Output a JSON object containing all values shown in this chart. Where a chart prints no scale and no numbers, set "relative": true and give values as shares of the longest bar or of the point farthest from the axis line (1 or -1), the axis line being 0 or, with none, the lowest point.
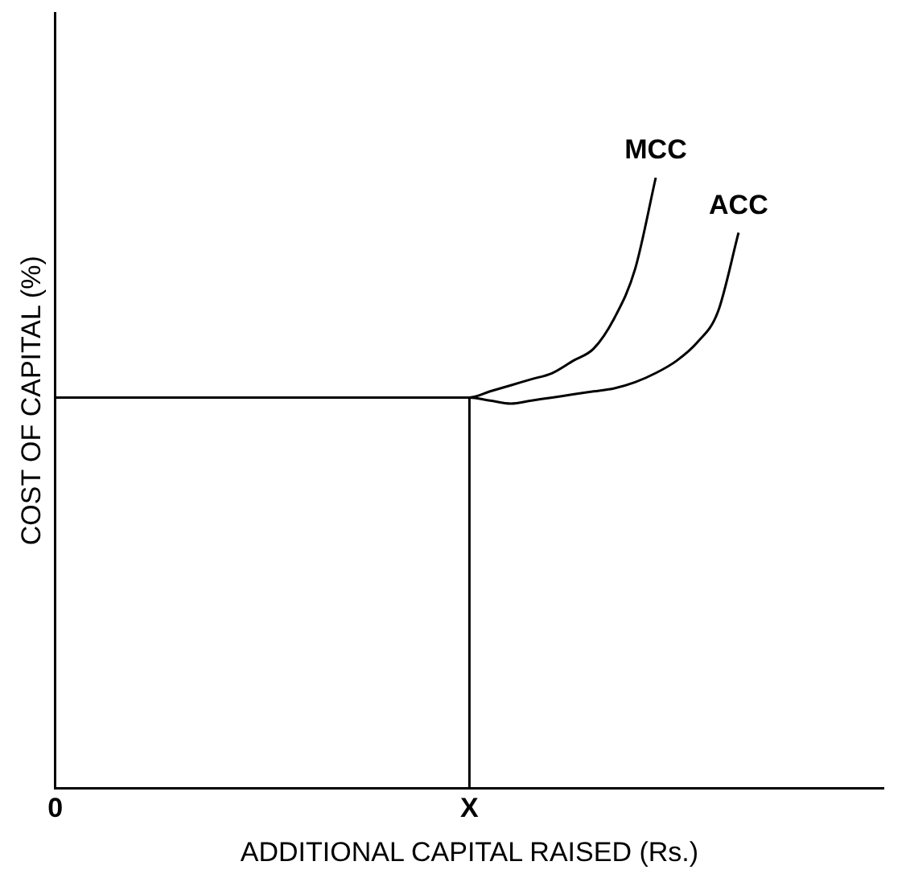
{
  "chart_data": {
    "type": "line",
    "relative": true,
    "xlabel": "ADDITIONAL CAPITAL RAISED (Rs.)",
    "ylabel": "COST OF CAPITAL (%)",
    "categories": [
      "0",
      null,
      null,
      null,
      null,
      null,
      null,
      null,
      null,
      null,
      null,
      null,
      null,
      null,
      null,
      null,
      null,
      null,
      null,
      null,
      "X",
      null,
      null,
      null,
      null,
      null,
      null,
      null,
      null,
      null,
      null,
      null,
      null,
      null,
      null,
      null,
      null,
      null,
      null,
      null,
      null
    ],
    "tick_labels": "x",
    "legend": false,
    "series": [
      {
        "name": "MCC",
        "color": "#000000",
        "values": [
          0.64,
          0.64,
          0.64,
          0.64,
          0.64,
          0.64,
          0.64,
          0.64,
          0.64,
          0.64,
          0.64,
          0.64,
          0.64,
          0.64,
          0.64,
          0.64,
          0.64,
          0.64,
          0.64,
          0.64,
          0.64,
          0.65,
          0.66,
          0.67,
          0.68,
          0.7,
          0.72,
          0.77,
          0.85,
          1,
          null,
          null,
          null,
          null,
          null,
          null,
          null,
          null,
          null,
          null,
          null
        ]
      },
      {
        "name": "ACC",
        "color": "#000000",
        "values": [
          0.64,
          0.64,
          0.64,
          0.64,
          0.64,
          0.64,
          0.64,
          0.64,
          0.64,
          0.64,
          0.64,
          0.64,
          0.64,
          0.64,
          0.64,
          0.64,
          0.64,
          0.64,
          0.64,
          0.64,
          0.64,
          0.635,
          0.63,
          0.635,
          0.64,
          0.645,
          0.65,
          0.655,
          0.665,
          0.68,
          0.7,
          0.73,
          0.78,
          0.91,
          null,
          null,
          null,
          null,
          null,
          null,
          null
        ]
      }
    ],
    "ref_lines": [
      {
        "axis": "x",
        "value": "X",
        "color": "#000000"
      }
    ]
  }
}
